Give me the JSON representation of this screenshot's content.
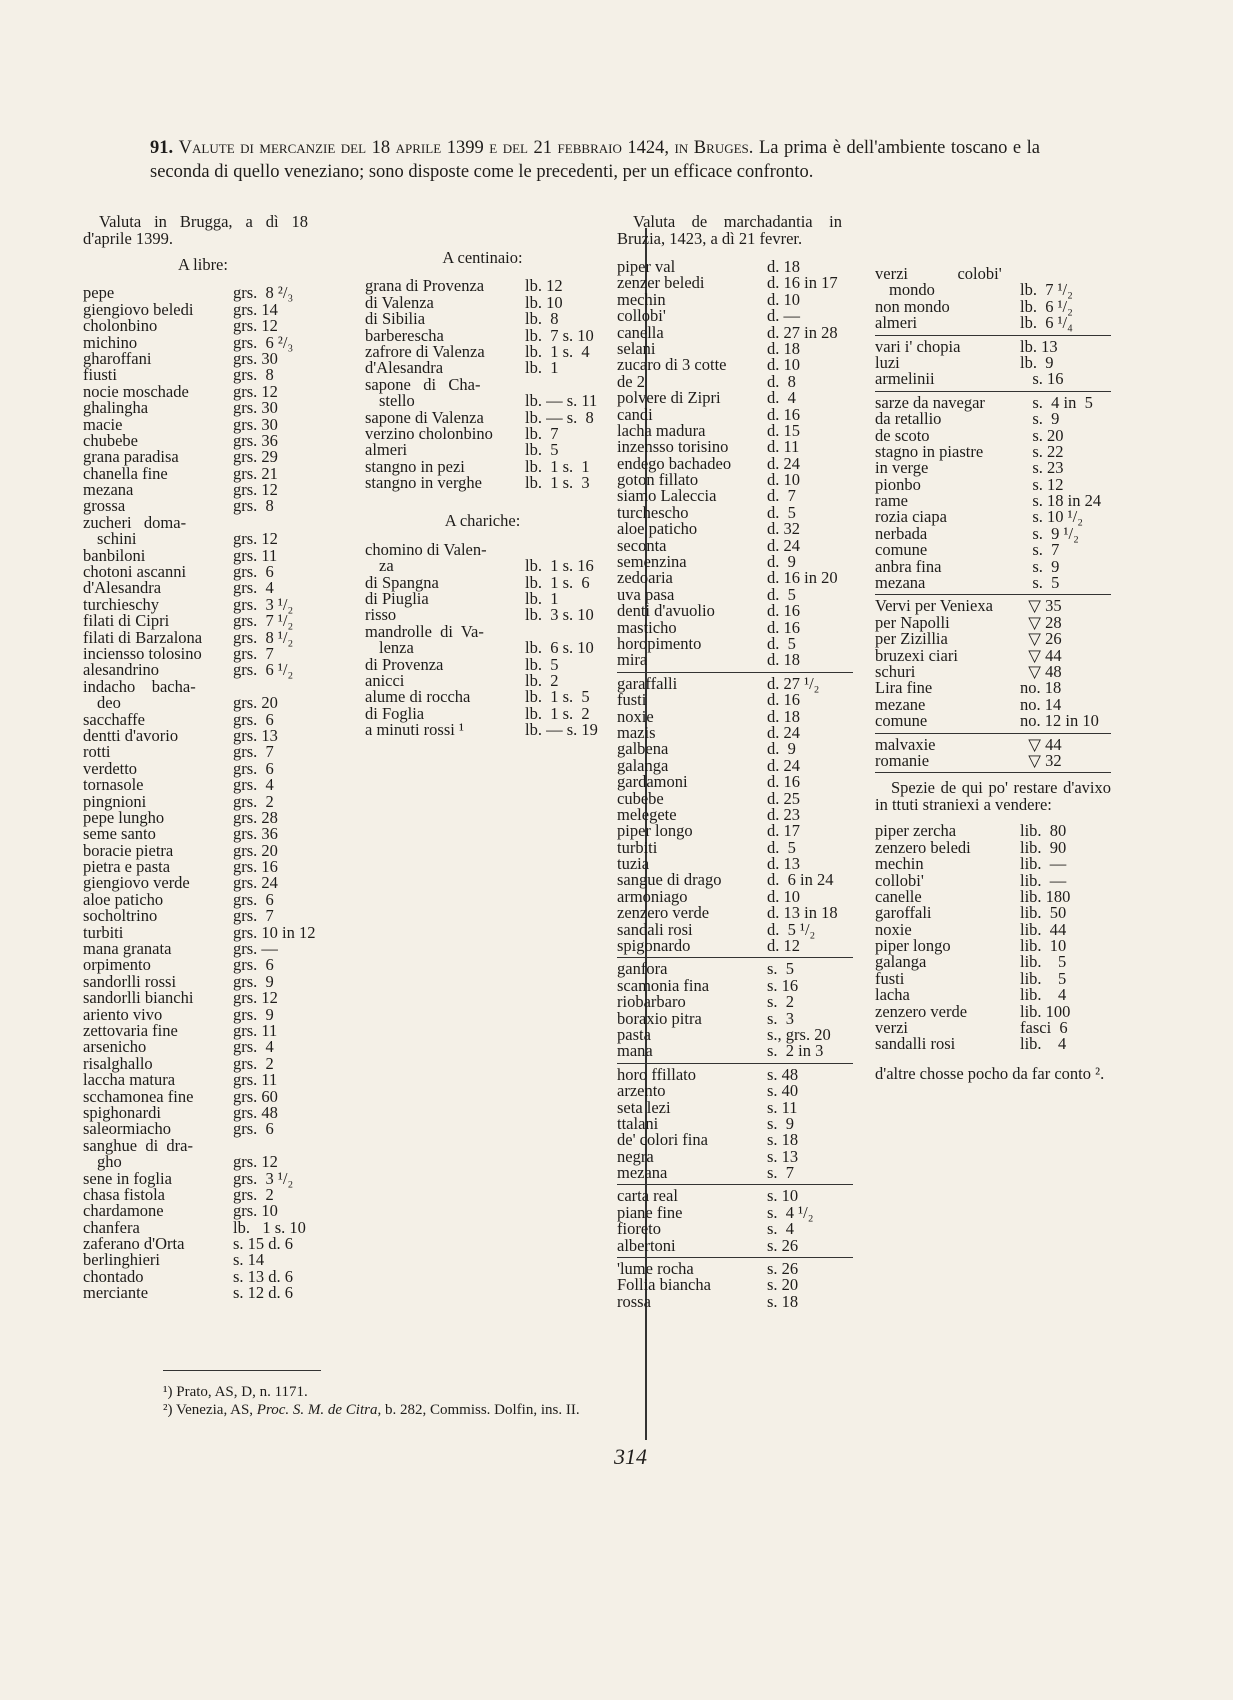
{
  "title": {
    "number": "91.",
    "heading": "Valute di mercanzie del 18 aprile 1399 e del 21 febbraio 1424, in Bruges.",
    "text": "La prima è dell'ambiente toscano e la seconda di quello veneziano; sono disposte come le precedenti, per un efficace confronto."
  },
  "col1": {
    "header": "Valuta in Brugga, a dì 18 d'aprile 1399.",
    "sub": "A libre:",
    "rows": [
      {
        "n": "pepe",
        "v": "grs.  8 ²/₃"
      },
      {
        "n": "giengiovo beledi",
        "v": "grs. 14"
      },
      {
        "n": "cholonbino",
        "v": "grs. 12"
      },
      {
        "n": "michino",
        "v": "grs.  6 ²/₃"
      },
      {
        "n": "gharoffani",
        "v": "grs. 30"
      },
      {
        "n": "fiusti",
        "v": "grs.  8"
      },
      {
        "n": "nocie moschade",
        "v": "grs. 12"
      },
      {
        "n": "ghalingha",
        "v": "grs. 30"
      },
      {
        "n": "macie",
        "v": "grs. 30"
      },
      {
        "n": "chubebe",
        "v": "grs. 36"
      },
      {
        "n": "grana paradisa",
        "v": "grs. 29"
      },
      {
        "n": "chanella fine",
        "v": "grs. 21"
      },
      {
        "n": "mezana",
        "v": "grs. 12"
      },
      {
        "n": "grossa",
        "v": "grs.  8"
      },
      {
        "n": "zucheri   doma-",
        "v": ""
      },
      {
        "n": "schini",
        "v": "grs. 12",
        "c": true
      },
      {
        "n": "banbiloni",
        "v": "grs. 11"
      },
      {
        "n": "chotoni ascanni",
        "v": "grs.  6"
      },
      {
        "n": "d'Alesandra",
        "v": "grs.  4"
      },
      {
        "n": "turchieschy",
        "v": "grs.  3 ¹/₂"
      },
      {
        "n": "filati di Cipri",
        "v": "grs.  7 ¹/₂"
      },
      {
        "n": "filati di Barzalona",
        "v": "grs.  8 ¹/₂"
      },
      {
        "n": "inciensso tolosino",
        "v": "grs.  7"
      },
      {
        "n": "alesandrino",
        "v": "grs.  6 ¹/₂"
      },
      {
        "n": "indacho    bacha-",
        "v": ""
      },
      {
        "n": "deo",
        "v": "grs. 20",
        "c": true
      },
      {
        "n": "sacchaffe",
        "v": "grs.  6"
      },
      {
        "n": "dentti d'avorio",
        "v": "grs. 13"
      },
      {
        "n": "rotti",
        "v": "grs.  7"
      },
      {
        "n": "verdetto",
        "v": "grs.  6"
      },
      {
        "n": "tornasole",
        "v": "grs.  4"
      },
      {
        "n": "pingnioni",
        "v": "grs.  2"
      },
      {
        "n": "pepe lungho",
        "v": "grs. 28"
      },
      {
        "n": "seme santo",
        "v": "grs. 36"
      },
      {
        "n": "boracie pietra",
        "v": "grs. 20"
      },
      {
        "n": "pietra e pasta",
        "v": "grs. 16"
      },
      {
        "n": "giengiovo verde",
        "v": "grs. 24"
      },
      {
        "n": "aloe paticho",
        "v": "grs.  6"
      },
      {
        "n": "socholtrino",
        "v": "grs.  7"
      },
      {
        "n": "turbiti",
        "v": "grs. 10 in 12"
      },
      {
        "n": "mana granata",
        "v": "grs. —"
      },
      {
        "n": "orpimento",
        "v": "grs.  6"
      },
      {
        "n": "sandorlli rossi",
        "v": "grs.  9"
      },
      {
        "n": "sandorlli bianchi",
        "v": "grs. 12"
      },
      {
        "n": "ariento vivo",
        "v": "grs.  9"
      },
      {
        "n": "zettovaria fine",
        "v": "grs. 11"
      },
      {
        "n": "arsenicho",
        "v": "grs.  4"
      },
      {
        "n": "risalghallo",
        "v": "grs.  2"
      },
      {
        "n": "laccha matura",
        "v": "grs. 11"
      },
      {
        "n": "scchamonea fine",
        "v": "grs. 60"
      },
      {
        "n": "spighonardi",
        "v": "grs. 48"
      },
      {
        "n": "saleormiacho",
        "v": "grs.  6"
      },
      {
        "n": "sanghue  di  dra-",
        "v": ""
      },
      {
        "n": "gho",
        "v": "grs. 12",
        "c": true
      },
      {
        "n": "sene in foglia",
        "v": "grs.  3 ¹/₂"
      },
      {
        "n": "chasa fistola",
        "v": "grs.  2"
      },
      {
        "n": "chardamone",
        "v": "grs. 10"
      },
      {
        "n": "chanfera",
        "v": "lb.   1 s. 10"
      },
      {
        "n": "zaferano d'Orta",
        "v": "s. 15 d. 6"
      },
      {
        "n": "berlinghieri",
        "v": "s. 14"
      },
      {
        "n": "chontado",
        "v": "s. 13 d. 6"
      },
      {
        "n": "merciante",
        "v": "s. 12 d. 6"
      }
    ]
  },
  "col2": {
    "sub1": "A centinaio:",
    "rows1": [
      {
        "n": "grana di Provenza",
        "v": "lb. 12"
      },
      {
        "n": "di Valenza",
        "v": "lb. 10"
      },
      {
        "n": "di Sibilia",
        "v": "lb.  8"
      },
      {
        "n": "barberescha",
        "v": "lb.  7 s. 10"
      },
      {
        "n": "zafrore di Valenza",
        "v": "lb.  1 s.  4"
      },
      {
        "n": "d'Alesandra",
        "v": "lb.  1"
      },
      {
        "n": "sapone   di   Cha-",
        "v": ""
      },
      {
        "n": "stello",
        "v": "lb. — s. 11",
        "c": true
      },
      {
        "n": "sapone di Valenza",
        "v": "lb. — s.  8"
      },
      {
        "n": "verzino cholonbino",
        "v": "lb.  7"
      },
      {
        "n": "almeri",
        "v": "lb.  5"
      },
      {
        "n": "stangno in pezi",
        "v": "lb.  1 s.  1"
      },
      {
        "n": "stangno in verghe",
        "v": "lb.  1 s.  3"
      }
    ],
    "sub2": "A chariche:",
    "rows2": [
      {
        "n": "chomino di Valen-",
        "v": ""
      },
      {
        "n": "za",
        "v": "lb.  1 s. 16",
        "c": true
      },
      {
        "n": "di Spangna",
        "v": "lb.  1 s.  6"
      },
      {
        "n": "di Piuglia",
        "v": "lb.  1"
      },
      {
        "n": "risso",
        "v": "lb.  3 s. 10"
      },
      {
        "n": "mandrolle  di  Va-",
        "v": ""
      },
      {
        "n": "lenza",
        "v": "lb.  6 s. 10",
        "c": true
      },
      {
        "n": "di Provenza",
        "v": "lb.  5"
      },
      {
        "n": "anicci",
        "v": "lb.  2"
      },
      {
        "n": "alume di roccha",
        "v": "lb.  1 s.  5"
      },
      {
        "n": "di Foglia",
        "v": "lb.  1 s.  2"
      },
      {
        "n": "a minuti rossi ¹",
        "v": "lb. — s. 19"
      }
    ]
  },
  "col3": {
    "header": "Valuta de marchadantia in Bruzia, 1423, a dì 21 fevrer.",
    "groups": [
      [
        {
          "n": "piper val",
          "v": "d. 18"
        },
        {
          "n": "zenzer beledi",
          "v": "d. 16 in 17"
        },
        {
          "n": "mechin",
          "v": "d. 10"
        },
        {
          "n": "collobi'",
          "v": "d. —"
        },
        {
          "n": "canella",
          "v": "d. 27 in 28"
        },
        {
          "n": "selani",
          "v": "d. 18"
        },
        {
          "n": "zucaro di 3 cotte",
          "v": "d. 10"
        },
        {
          "n": "de 2",
          "v": "d.  8"
        },
        {
          "n": "polvere di Zipri",
          "v": "d.  4"
        },
        {
          "n": "candi",
          "v": "d. 16"
        },
        {
          "n": "lacha madura",
          "v": "d. 15"
        },
        {
          "n": "inzensso torisino",
          "v": "d. 11"
        },
        {
          "n": "endego bachadeo",
          "v": "d. 24"
        },
        {
          "n": "goton fillato",
          "v": "d. 10"
        },
        {
          "n": "siamo Laleccia",
          "v": "d.  7"
        },
        {
          "n": "turchescho",
          "v": "d.  5"
        },
        {
          "n": "aloe paticho",
          "v": "d. 32"
        },
        {
          "n": "seconta",
          "v": "d. 24"
        },
        {
          "n": "semenzina",
          "v": "d.  9"
        },
        {
          "n": "zedoaria",
          "v": "d. 16 in 20"
        },
        {
          "n": "uva pasa",
          "v": "d.  5"
        },
        {
          "n": "denti d'avuolio",
          "v": "d. 16"
        },
        {
          "n": "masticho",
          "v": "d. 16"
        },
        {
          "n": "horopimento",
          "v": "d.  5"
        },
        {
          "n": "mira",
          "v": "d. 18"
        }
      ],
      [
        {
          "n": "garaffalli",
          "v": "d. 27 ¹/₂"
        },
        {
          "n": "fusti",
          "v": "d. 16"
        },
        {
          "n": "noxie",
          "v": "d. 18"
        },
        {
          "n": "mazis",
          "v": "d. 24"
        },
        {
          "n": "galbena",
          "v": "d.  9"
        },
        {
          "n": "galanga",
          "v": "d. 24"
        },
        {
          "n": "gardamoni",
          "v": "d. 16"
        },
        {
          "n": "cubebe",
          "v": "d. 25"
        },
        {
          "n": "melegete",
          "v": "d. 23"
        },
        {
          "n": "piper longo",
          "v": "d. 17"
        },
        {
          "n": "turbiti",
          "v": "d.  5"
        },
        {
          "n": "tuzia",
          "v": "d. 13"
        },
        {
          "n": "sangue di drago",
          "v": "d.  6 in 24"
        },
        {
          "n": "armoniago",
          "v": "d. 10"
        },
        {
          "n": "zenzero verde",
          "v": "d. 13 in 18"
        },
        {
          "n": "sandali rosi",
          "v": "d.  5 ¹/₂"
        },
        {
          "n": "spigonardo",
          "v": "d. 12"
        }
      ],
      [
        {
          "n": "ganfora",
          "v": "s.  5"
        },
        {
          "n": "scamonia fina",
          "v": "s. 16"
        },
        {
          "n": "riobarbaro",
          "v": "s.  2"
        },
        {
          "n": "boraxio pitra",
          "v": "s.  3"
        },
        {
          "n": "pasta",
          "v": "s., grs. 20"
        },
        {
          "n": "mana",
          "v": "s.  2 in 3"
        }
      ],
      [
        {
          "n": "horo ffillato",
          "v": "s. 48"
        },
        {
          "n": "arzento",
          "v": "s. 40"
        },
        {
          "n": "seta lezi",
          "v": "s. 11"
        },
        {
          "n": "ttalani",
          "v": "s.  9"
        },
        {
          "n": "de' colori fina",
          "v": "s. 18"
        },
        {
          "n": "negra",
          "v": "s. 13"
        },
        {
          "n": "mezana",
          "v": "s.  7"
        }
      ],
      [
        {
          "n": "carta real",
          "v": "s. 10"
        },
        {
          "n": "piane fine",
          "v": "s.  4 ¹/₂"
        },
        {
          "n": "fioreto",
          "v": "s.  4"
        },
        {
          "n": "albertoni",
          "v": "s. 26"
        }
      ],
      [
        {
          "n": "'lume rocha",
          "v": "s. 26"
        },
        {
          "n": "Follia biancha",
          "v": "s. 20"
        },
        {
          "n": "rossa",
          "v": "s. 18"
        }
      ]
    ]
  },
  "col4": {
    "groups": [
      [
        {
          "n": "verzi            colobi'",
          "v": ""
        },
        {
          "n": "mondo",
          "v": "lb.  7 ¹/₂",
          "c": true
        },
        {
          "n": "non mondo",
          "v": "lb.  6 ¹/₂"
        },
        {
          "n": "almeri",
          "v": "lb.  6 ¹/₄"
        }
      ],
      [
        {
          "n": "vari i' chopia",
          "v": "lb. 13"
        },
        {
          "n": "luzi",
          "v": "lb.  9"
        },
        {
          "n": "armelinii",
          "v": "   s. 16"
        }
      ],
      [
        {
          "n": "sarze da navegar",
          "v": "   s.  4 in  5"
        },
        {
          "n": "da retallio",
          "v": "   s.  9"
        },
        {
          "n": "de scoto",
          "v": "   s. 20"
        },
        {
          "n": "stagno in piastre",
          "v": "   s. 22"
        },
        {
          "n": "in verge",
          "v": "   s. 23"
        },
        {
          "n": "pionbo",
          "v": "   s. 12"
        },
        {
          "n": "rame",
          "v": "   s. 18 in 24"
        },
        {
          "n": "rozia ciapa",
          "v": "   s. 10 ¹/₂"
        },
        {
          "n": "nerbada",
          "v": "   s.  9 ¹/₂"
        },
        {
          "n": "comune",
          "v": "   s.  7"
        },
        {
          "n": "anbra fina",
          "v": "   s.  9"
        },
        {
          "n": "mezana",
          "v": "   s.  5"
        }
      ],
      [
        {
          "n": "Vervi per Veniexa",
          "v": "  ▽ 35"
        },
        {
          "n": "per Napolli",
          "v": "  ▽ 28"
        },
        {
          "n": "per Zizillia",
          "v": "  ▽ 26"
        },
        {
          "n": "bruzexi ciari",
          "v": "  ▽ 44"
        },
        {
          "n": "schuri",
          "v": "  ▽ 48"
        },
        {
          "n": "Lira fine",
          "v": "no. 18"
        },
        {
          "n": "mezane",
          "v": "no. 14"
        },
        {
          "n": "comune",
          "v": "no. 12 in 10"
        }
      ],
      [
        {
          "n": "malvaxie",
          "v": "  ▽ 44"
        },
        {
          "n": "romanie",
          "v": "  ▽ 32"
        }
      ]
    ],
    "para1": "Spezie de qui po' restare d'avixo in ttuti straniexi a vendere:",
    "rows": [
      {
        "n": "piper zercha",
        "v": "lib.  80"
      },
      {
        "n": "zenzero beledi",
        "v": "lib.  90"
      },
      {
        "n": "mechin",
        "v": "lib.  —"
      },
      {
        "n": "collobi'",
        "v": "lib.  —"
      },
      {
        "n": "canelle",
        "v": "lib. 180"
      },
      {
        "n": "garoffali",
        "v": "lib.  50"
      },
      {
        "n": "noxie",
        "v": "lib.  44"
      },
      {
        "n": "piper longo",
        "v": "lib.  10"
      },
      {
        "n": "galanga",
        "v": "lib.    5"
      },
      {
        "n": "fusti",
        "v": "lib.    5"
      },
      {
        "n": "lacha",
        "v": "lib.    4"
      },
      {
        "n": "zenzero verde",
        "v": "lib. 100"
      },
      {
        "n": "verzi",
        "v": "fasci  6"
      },
      {
        "n": "sandalli rosi",
        "v": "lib.    4"
      }
    ],
    "para2": "d'altre chosse pocho da far conto ²."
  },
  "footnotes": {
    "fn1": "¹) Prato, AS, D, n. 1171.",
    "fn2_pre": "²) Venezia, AS, ",
    "fn2_italic": "Proc. S. M. de Citra",
    "fn2_post": ", b. 282, Commiss. Dolfin, ins. II."
  },
  "page_number": "314"
}
